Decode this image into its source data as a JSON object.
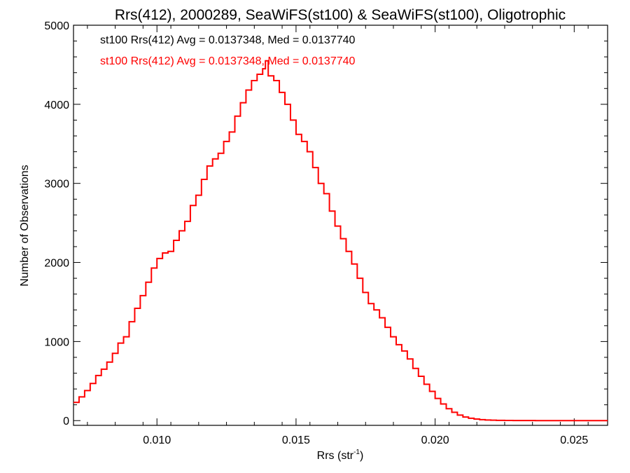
{
  "chart_data": {
    "type": "line",
    "title": "Rrs(412), 2000289, SeaWiFS(st100) & SeaWiFS(st100), Oligotrophic",
    "xlabel_main": "Rrs (str",
    "xlabel_sup": "-1",
    "xlabel_close": ")",
    "ylabel": "Number of Observations",
    "xlim": [
      0.007,
      0.0262
    ],
    "ylim": [
      -60,
      5000
    ],
    "x_ticks": [
      0.01,
      0.015,
      0.02,
      0.025
    ],
    "x_tick_labels": [
      "0.010",
      "0.015",
      "0.020",
      "0.025"
    ],
    "y_ticks": [
      0,
      1000,
      2000,
      3000,
      4000,
      5000
    ],
    "y_tick_labels": [
      "0",
      "1000",
      "2000",
      "3000",
      "4000",
      "5000"
    ],
    "annotations": [
      {
        "text": "st100 Rrs(412) Avg = 0.0137348, Med = 0.0137740",
        "color": "#000000"
      },
      {
        "text": "st100 Rrs(412) Avg = 0.0137348, Med = 0.0137740",
        "color": "#ff0000"
      }
    ],
    "series": [
      {
        "color": "#ff0000",
        "style": "step",
        "x": [
          0.007,
          0.0072,
          0.0074,
          0.0076,
          0.0078,
          0.008,
          0.0082,
          0.0084,
          0.0086,
          0.0088,
          0.009,
          0.0092,
          0.0094,
          0.0096,
          0.0098,
          0.01,
          0.0102,
          0.0104,
          0.0106,
          0.0108,
          0.011,
          0.0112,
          0.0114,
          0.0116,
          0.0118,
          0.012,
          0.0122,
          0.0124,
          0.0126,
          0.0128,
          0.013,
          0.0132,
          0.0134,
          0.0136,
          0.0138,
          0.0139,
          0.014,
          0.0142,
          0.0144,
          0.0146,
          0.0148,
          0.015,
          0.0152,
          0.0154,
          0.0156,
          0.0158,
          0.016,
          0.0162,
          0.0164,
          0.0166,
          0.0168,
          0.017,
          0.0172,
          0.0174,
          0.0176,
          0.0178,
          0.018,
          0.0182,
          0.0184,
          0.0186,
          0.0188,
          0.019,
          0.0192,
          0.0194,
          0.0196,
          0.0198,
          0.02,
          0.0202,
          0.0204,
          0.0206,
          0.0208,
          0.021,
          0.0212,
          0.0214,
          0.0216,
          0.0218,
          0.022,
          0.0222,
          0.0225,
          0.0228,
          0.0232,
          0.0236,
          0.024,
          0.0245,
          0.025,
          0.0255,
          0.0262
        ],
        "y": [
          230,
          300,
          380,
          470,
          570,
          650,
          740,
          850,
          980,
          1060,
          1250,
          1420,
          1580,
          1750,
          1930,
          2050,
          2120,
          2140,
          2280,
          2400,
          2520,
          2720,
          2850,
          3050,
          3220,
          3310,
          3380,
          3530,
          3650,
          3850,
          4020,
          4180,
          4300,
          4380,
          4450,
          4550,
          4360,
          4300,
          4150,
          4000,
          3800,
          3620,
          3530,
          3400,
          3200,
          3000,
          2870,
          2650,
          2460,
          2300,
          2140,
          1980,
          1800,
          1620,
          1480,
          1400,
          1300,
          1180,
          1060,
          960,
          880,
          780,
          660,
          560,
          460,
          370,
          280,
          210,
          150,
          105,
          70,
          45,
          30,
          20,
          12,
          8,
          5,
          3,
          2,
          1,
          1,
          0,
          0,
          0,
          0,
          0,
          0
        ]
      }
    ]
  }
}
